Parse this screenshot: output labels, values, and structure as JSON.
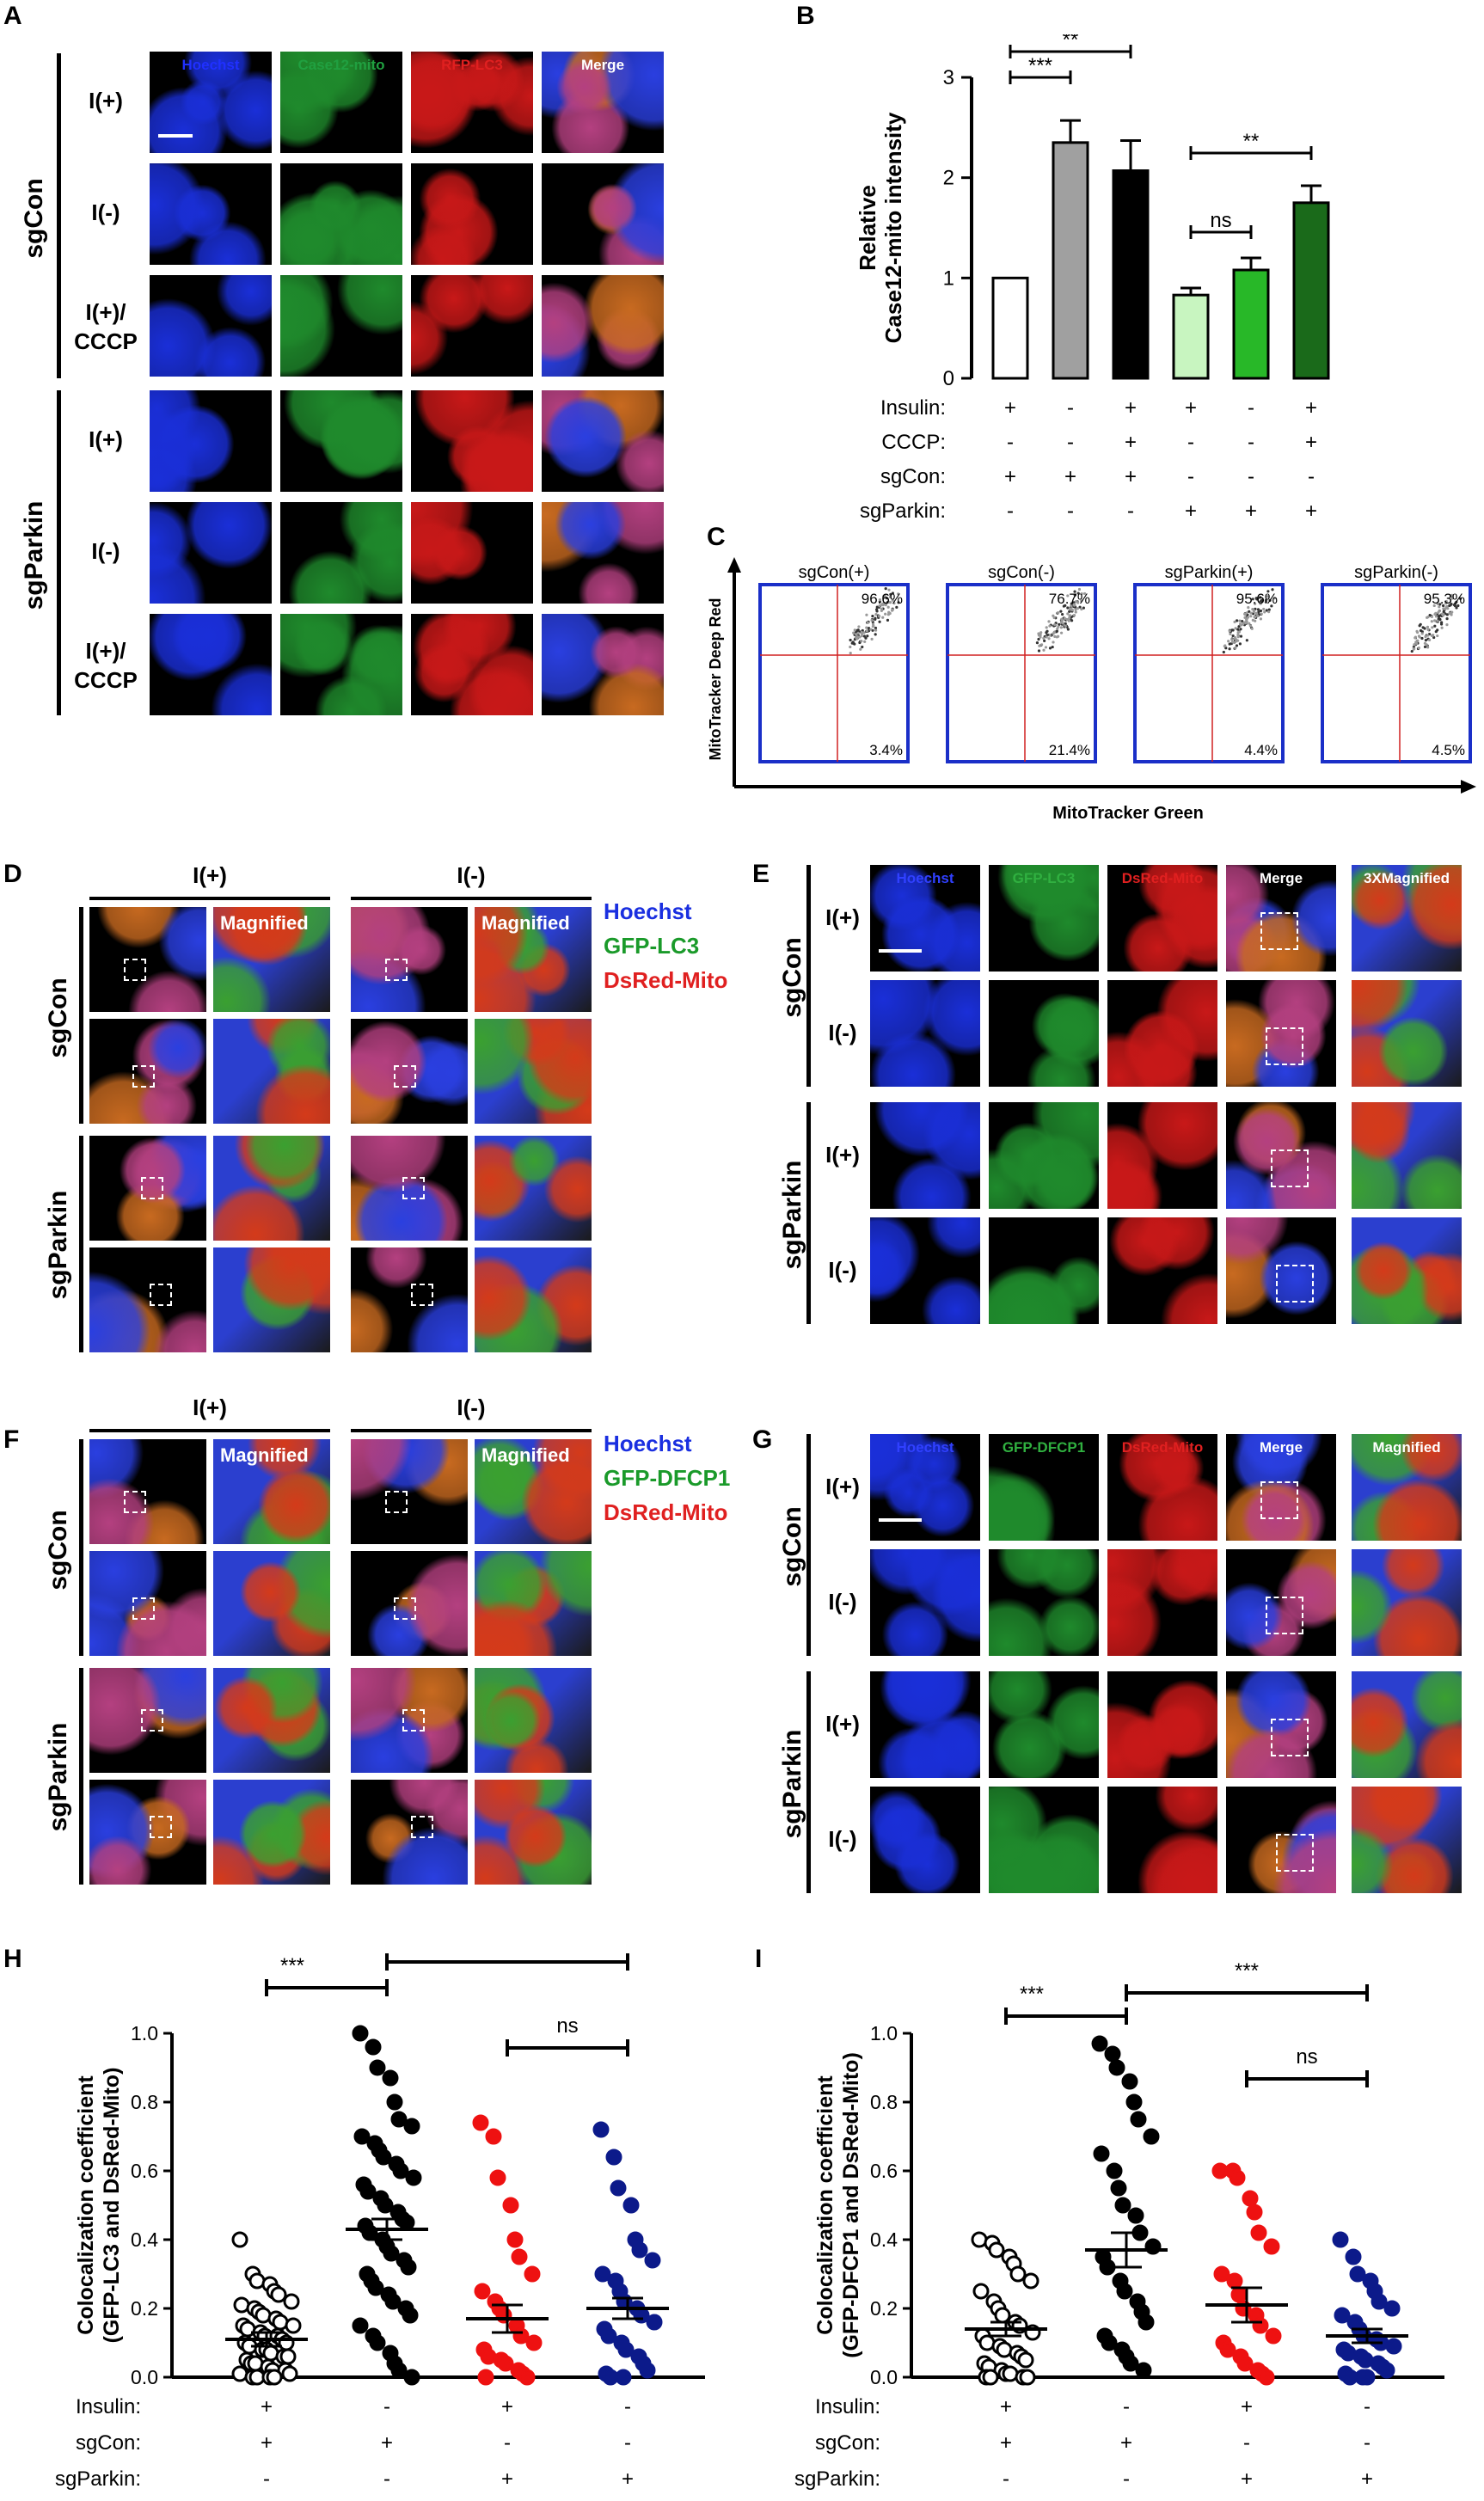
{
  "panels": {
    "A": "A",
    "B": "B",
    "C": "C",
    "D": "D",
    "E": "E",
    "F": "F",
    "G": "G",
    "H": "H",
    "I": "I"
  },
  "panelA": {
    "channels": [
      "Hoechst",
      "Case12-mito",
      "RFP-LC3",
      "Merge"
    ],
    "channel_colors": [
      "#2030ff",
      "#20a040",
      "#e02020",
      "#ffffff"
    ],
    "groups": [
      "sgCon",
      "sgParkin"
    ],
    "rows": [
      "I(+)",
      "I(-)",
      "I(+)/\nCCCP",
      "I(+)",
      "I(-)",
      "I(+)/\nCCCP"
    ]
  },
  "panelB": {
    "ylabel": "Relative\nCase12-mito intensity",
    "conditions": [
      "Insulin:",
      "CCCP:",
      "sgCon:",
      "sgParkin:"
    ],
    "signs": [
      [
        "+",
        "-",
        "+",
        "+",
        "-",
        "+"
      ],
      [
        "-",
        "-",
        "+",
        "-",
        "-",
        "+"
      ],
      [
        "+",
        "+",
        "+",
        "-",
        "-",
        "-"
      ],
      [
        "-",
        "-",
        "-",
        "+",
        "+",
        "+"
      ]
    ],
    "sig": [
      "***",
      "**",
      "***",
      "ns",
      "**"
    ]
  },
  "panelC": {
    "xlabel": "MitoTracker Green",
    "ylabel": "MitoTracker Deep Red",
    "plots": [
      {
        "title": "sgCon(+)",
        "upper": "96.6%",
        "lower": "3.4%"
      },
      {
        "title": "sgCon(-)",
        "upper": "76.7%",
        "lower": "21.4%"
      },
      {
        "title": "sgParkin(+)",
        "upper": "95.6%",
        "lower": "4.4%"
      },
      {
        "title": "sgParkin(-)",
        "upper": "95.3%",
        "lower": "4.5%"
      }
    ]
  },
  "panelD": {
    "cols": [
      "I(+)",
      "I(-)"
    ],
    "magnified": "Magnified",
    "legend": [
      "Hoechst",
      "GFP-LC3",
      "DsRed-Mito"
    ],
    "groups": [
      "sgCon",
      "sgParkin"
    ]
  },
  "panelE": {
    "channels": [
      "Hoechst",
      "GFP-LC3",
      "DsRed-Mito",
      "Merge",
      "3XMagnified"
    ],
    "rows": [
      "I(+)",
      "I(-)",
      "I(+)",
      "I(-)"
    ],
    "groups": [
      "sgCon",
      "sgParkin"
    ]
  },
  "panelF": {
    "cols": [
      "I(+)",
      "I(-)"
    ],
    "magnified": "Magnified",
    "legend": [
      "Hoechst",
      "GFP-DFCP1",
      "DsRed-Mito"
    ],
    "groups": [
      "sgCon",
      "sgParkin"
    ]
  },
  "panelG": {
    "channels": [
      "Hoechst",
      "GFP-DFCP1",
      "DsRed-Mito",
      "Merge",
      "Magnified"
    ],
    "rows": [
      "I(+)",
      "I(-)",
      "I(+)",
      "I(-)"
    ],
    "groups": [
      "sgCon",
      "sgParkin"
    ]
  },
  "panelH": {
    "ylabel": "Colocalization coefficient\n(GFP-LC3 and DsRed-Mito)",
    "conditions": [
      "Insulin:",
      "sgCon:",
      "sgParkin:"
    ],
    "signs": [
      [
        "+",
        "-",
        "+",
        "-"
      ],
      [
        "+",
        "+",
        "-",
        "-"
      ],
      [
        "-",
        "-",
        "+",
        "+"
      ]
    ],
    "sig": [
      "***",
      "***",
      "ns"
    ]
  },
  "panelI": {
    "ylabel": "Colocalization coefficient\n(GFP-DFCP1 and DsRed-Mito)",
    "conditions": [
      "Insulin:",
      "sgCon:",
      "sgParkin:"
    ],
    "signs": [
      [
        "+",
        "-",
        "+",
        "-"
      ],
      [
        "+",
        "+",
        "-",
        "-"
      ],
      [
        "-",
        "-",
        "+",
        "+"
      ]
    ],
    "sig": [
      "***",
      "***",
      "ns"
    ]
  },
  "chart_data": [
    {
      "type": "bar",
      "panel": "B",
      "categories": [
        "1",
        "2",
        "3",
        "4",
        "5",
        "6"
      ],
      "values": [
        1.0,
        2.35,
        2.07,
        0.83,
        1.08,
        1.75
      ],
      "errors": [
        0,
        0.22,
        0.3,
        0.07,
        0.12,
        0.17
      ],
      "colors": [
        "#ffffff",
        "#a0a0a0",
        "#000000",
        "#c8f5c0",
        "#28b828",
        "#1a6a1a"
      ],
      "ylim": [
        0,
        3
      ],
      "yticks": [
        0,
        1,
        2,
        3
      ]
    },
    {
      "type": "scatter",
      "panel": "H",
      "ylim": [
        0,
        1.0
      ],
      "yticks": [
        0.0,
        0.2,
        0.4,
        0.6,
        0.8,
        1.0
      ],
      "groups": [
        {
          "mean": 0.11,
          "sem": 0.02,
          "color": "#000000",
          "fill": "none",
          "values": [
            0.4,
            0.3,
            0.28,
            0.27,
            0.25,
            0.24,
            0.22,
            0.21,
            0.2,
            0.19,
            0.18,
            0.17,
            0.16,
            0.15,
            0.15,
            0.14,
            0.13,
            0.12,
            0.12,
            0.11,
            0.1,
            0.1,
            0.09,
            0.08,
            0.08,
            0.07,
            0.06,
            0.06,
            0.05,
            0.04,
            0.04,
            0.03,
            0.02,
            0.02,
            0.01,
            0.01,
            0.0,
            0.0,
            0.0,
            0.0
          ]
        },
        {
          "mean": 0.43,
          "sem": 0.03,
          "color": "#000000",
          "fill": "#000000",
          "values": [
            1.0,
            0.96,
            0.9,
            0.87,
            0.8,
            0.75,
            0.73,
            0.7,
            0.68,
            0.66,
            0.64,
            0.62,
            0.6,
            0.58,
            0.56,
            0.54,
            0.52,
            0.5,
            0.48,
            0.46,
            0.45,
            0.44,
            0.42,
            0.4,
            0.38,
            0.36,
            0.34,
            0.32,
            0.3,
            0.28,
            0.26,
            0.24,
            0.22,
            0.2,
            0.18,
            0.15,
            0.12,
            0.1,
            0.07,
            0.04,
            0.02,
            0.0
          ]
        },
        {
          "mean": 0.17,
          "sem": 0.04,
          "color": "#ee1111",
          "fill": "#ee1111",
          "values": [
            0.74,
            0.7,
            0.58,
            0.5,
            0.4,
            0.35,
            0.3,
            0.25,
            0.22,
            0.2,
            0.18,
            0.15,
            0.12,
            0.1,
            0.08,
            0.06,
            0.05,
            0.04,
            0.02,
            0.01,
            0.0,
            0.0
          ]
        },
        {
          "mean": 0.2,
          "sem": 0.03,
          "color": "#0c1a8a",
          "fill": "#0c1a8a",
          "values": [
            0.72,
            0.64,
            0.55,
            0.5,
            0.4,
            0.37,
            0.34,
            0.3,
            0.28,
            0.25,
            0.22,
            0.2,
            0.18,
            0.16,
            0.14,
            0.12,
            0.1,
            0.08,
            0.06,
            0.04,
            0.02,
            0.01,
            0.0,
            0.0
          ]
        }
      ]
    },
    {
      "type": "scatter",
      "panel": "I",
      "ylim": [
        0,
        1.0
      ],
      "yticks": [
        0.0,
        0.2,
        0.4,
        0.6,
        0.8,
        1.0
      ],
      "groups": [
        {
          "mean": 0.14,
          "sem": 0.02,
          "color": "#000000",
          "fill": "none",
          "values": [
            0.4,
            0.39,
            0.37,
            0.35,
            0.33,
            0.3,
            0.28,
            0.25,
            0.22,
            0.2,
            0.18,
            0.16,
            0.15,
            0.13,
            0.12,
            0.1,
            0.09,
            0.08,
            0.07,
            0.06,
            0.05,
            0.04,
            0.03,
            0.02,
            0.01,
            0.01,
            0.0,
            0.0,
            0.0,
            0.0
          ]
        },
        {
          "mean": 0.37,
          "sem": 0.05,
          "color": "#000000",
          "fill": "#000000",
          "values": [
            0.97,
            0.94,
            0.9,
            0.86,
            0.8,
            0.75,
            0.7,
            0.65,
            0.6,
            0.55,
            0.5,
            0.47,
            0.42,
            0.38,
            0.35,
            0.32,
            0.28,
            0.25,
            0.22,
            0.19,
            0.16,
            0.12,
            0.1,
            0.08,
            0.06,
            0.04,
            0.02
          ]
        },
        {
          "mean": 0.21,
          "sem": 0.05,
          "color": "#ee1111",
          "fill": "#ee1111",
          "values": [
            0.6,
            0.6,
            0.58,
            0.52,
            0.48,
            0.42,
            0.38,
            0.3,
            0.28,
            0.24,
            0.2,
            0.18,
            0.15,
            0.12,
            0.1,
            0.08,
            0.06,
            0.04,
            0.02,
            0.01,
            0.0
          ]
        },
        {
          "mean": 0.12,
          "sem": 0.02,
          "color": "#0c1a8a",
          "fill": "#0c1a8a",
          "values": [
            0.4,
            0.35,
            0.3,
            0.28,
            0.25,
            0.22,
            0.2,
            0.18,
            0.16,
            0.14,
            0.12,
            0.11,
            0.1,
            0.09,
            0.08,
            0.07,
            0.06,
            0.05,
            0.04,
            0.03,
            0.02,
            0.01,
            0.0,
            0.0,
            0.0
          ]
        }
      ]
    }
  ]
}
